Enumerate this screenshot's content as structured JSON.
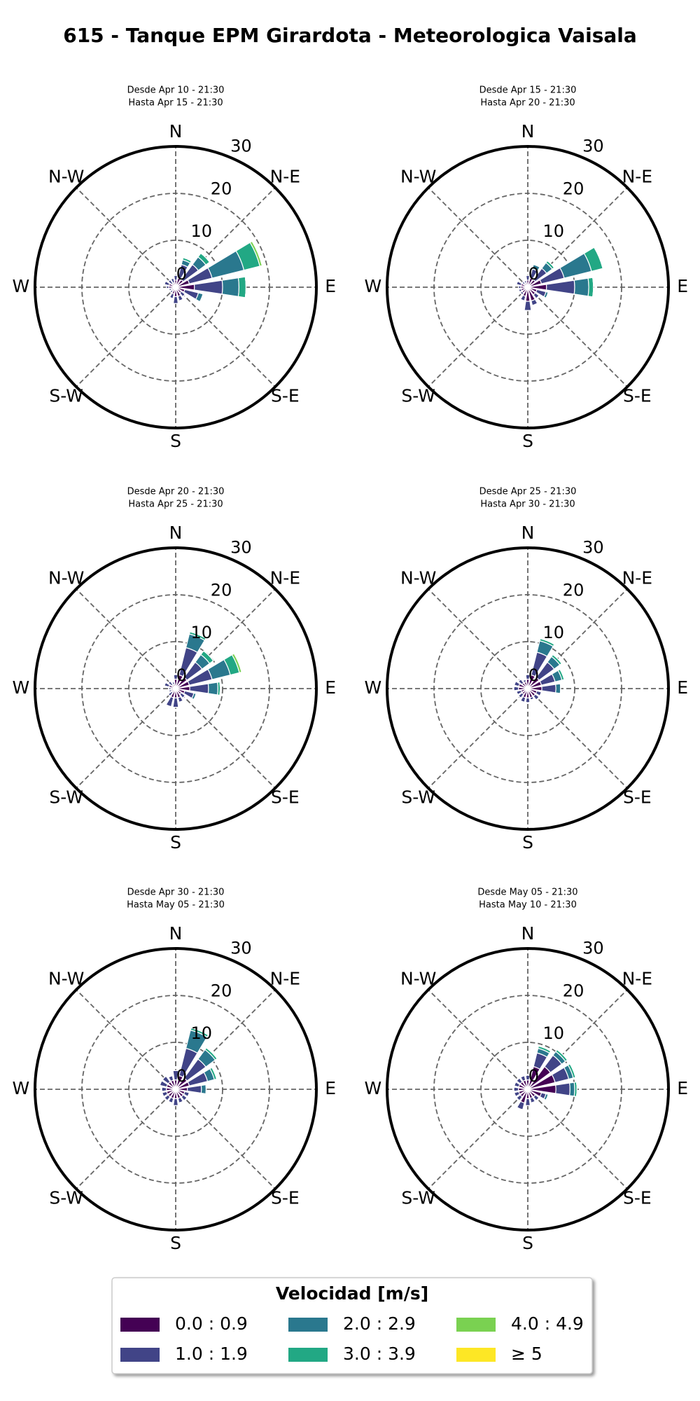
{
  "title": "615 - Tanque EPM Girardota - Meteorologica Vaisala",
  "legend": {
    "title": "Velocidad [m/s]",
    "entries": [
      {
        "name": "0.0 : 0.9",
        "color": "#440154"
      },
      {
        "name": "1.0 : 1.9",
        "color": "#414487"
      },
      {
        "name": "2.0 : 2.9",
        "color": "#2a788e"
      },
      {
        "name": "3.0 : 3.9",
        "color": "#22a884"
      },
      {
        "name": "4.0 : 4.9",
        "color": "#7ad151"
      },
      {
        "name": "≥  5",
        "color": "#fde725"
      }
    ]
  },
  "chart_data": [
    {
      "type": "windrose",
      "subtitle": [
        "Desde Apr 10 - 21:30",
        "Hasta Apr 15 - 21:30"
      ],
      "x": [
        0,
        22.5,
        45,
        67.5,
        90,
        112.5,
        135,
        157.5,
        180,
        202.5,
        225,
        247.5,
        270,
        292.5,
        315,
        337.5
      ],
      "xticks": [
        {
          "value": 0,
          "label": "N"
        },
        {
          "value": 45,
          "label": "N-E"
        },
        {
          "value": 90,
          "label": "E"
        },
        {
          "value": 135,
          "label": "S-E"
        },
        {
          "value": 180,
          "label": "S"
        },
        {
          "value": 225,
          "label": "S-W"
        },
        {
          "value": 270,
          "label": "W"
        },
        {
          "value": 315,
          "label": "N-W"
        }
      ],
      "rlim": [
        0,
        30
      ],
      "rticks": [
        0,
        10,
        20,
        30
      ],
      "series": [
        {
          "values": [
            1.5,
            2,
            2,
            3,
            4,
            2,
            1.5,
            2,
            2,
            1.5,
            1,
            1,
            1.5,
            1.5,
            1,
            1
          ]
        },
        {
          "values": [
            1,
            3,
            4,
            5,
            6,
            3,
            1,
            1,
            1.5,
            1,
            0.5,
            0.5,
            0.5,
            1,
            1,
            1
          ]
        },
        {
          "values": [
            0,
            1,
            2,
            7,
            3.5,
            1,
            0,
            0,
            0,
            0,
            0,
            0,
            0,
            0,
            0,
            0
          ]
        },
        {
          "values": [
            0,
            0.5,
            1,
            3.5,
            1.5,
            0,
            0,
            0,
            0,
            0,
            0,
            0,
            0,
            0,
            0,
            0
          ]
        },
        {
          "values": [
            0,
            0,
            0,
            0.5,
            0,
            0,
            0,
            0,
            0,
            0,
            0,
            0,
            0,
            0,
            0,
            0
          ]
        },
        {
          "values": [
            0,
            0,
            0,
            0,
            0,
            0,
            0,
            0,
            0,
            0,
            0,
            0,
            0,
            0,
            0,
            0
          ]
        }
      ]
    },
    {
      "type": "windrose",
      "subtitle": [
        "Desde Apr 15 - 21:30",
        "Hasta Apr 20 - 21:30"
      ],
      "x": [
        0,
        22.5,
        45,
        67.5,
        90,
        112.5,
        135,
        157.5,
        180,
        202.5,
        225,
        247.5,
        270,
        292.5,
        315,
        337.5
      ],
      "xticks": [
        {
          "value": 0,
          "label": "N"
        },
        {
          "value": 45,
          "label": "N-E"
        },
        {
          "value": 90,
          "label": "E"
        },
        {
          "value": 135,
          "label": "S-E"
        },
        {
          "value": 180,
          "label": "S"
        },
        {
          "value": 225,
          "label": "S-W"
        },
        {
          "value": 270,
          "label": "W"
        },
        {
          "value": 315,
          "label": "N-W"
        }
      ],
      "rlim": [
        0,
        30
      ],
      "rticks": [
        0,
        10,
        20,
        30
      ],
      "series": [
        {
          "values": [
            1.5,
            2,
            2,
            3,
            4,
            2,
            2,
            3,
            3,
            2,
            1.5,
            1.5,
            1.5,
            1.5,
            1,
            1
          ]
        },
        {
          "values": [
            1,
            2,
            3,
            5,
            6,
            2,
            1,
            1,
            2,
            1,
            0.5,
            0.5,
            0.5,
            1,
            0.5,
            0.5
          ]
        },
        {
          "values": [
            0,
            1,
            1.5,
            6,
            3,
            0.5,
            0,
            0,
            0,
            0,
            0,
            0,
            0,
            0,
            0,
            0
          ]
        },
        {
          "values": [
            0,
            0,
            0.5,
            2.5,
            1,
            0,
            0,
            0,
            0,
            0,
            0,
            0,
            0,
            0,
            0,
            0
          ]
        },
        {
          "values": [
            0,
            0,
            0,
            0,
            0,
            0,
            0,
            0,
            0,
            0,
            0,
            0,
            0,
            0,
            0,
            0
          ]
        },
        {
          "values": [
            0,
            0,
            0,
            0,
            0,
            0,
            0,
            0,
            0,
            0,
            0,
            0,
            0,
            0,
            0,
            0
          ]
        }
      ]
    },
    {
      "type": "windrose",
      "subtitle": [
        "Desde Apr 20 - 21:30",
        "Hasta Apr 25 - 21:30"
      ],
      "x": [
        0,
        22.5,
        45,
        67.5,
        90,
        112.5,
        135,
        157.5,
        180,
        202.5,
        225,
        247.5,
        270,
        292.5,
        315,
        337.5
      ],
      "xticks": [
        {
          "value": 0,
          "label": "N"
        },
        {
          "value": 45,
          "label": "N-E"
        },
        {
          "value": 90,
          "label": "E"
        },
        {
          "value": 135,
          "label": "S-E"
        },
        {
          "value": 180,
          "label": "S"
        },
        {
          "value": 225,
          "label": "S-W"
        },
        {
          "value": 270,
          "label": "W"
        },
        {
          "value": 315,
          "label": "N-W"
        }
      ],
      "rlim": [
        0,
        30
      ],
      "rticks": [
        0,
        10,
        20,
        30
      ],
      "series": [
        {
          "values": [
            2,
            3,
            3,
            3,
            3,
            2,
            1.5,
            2,
            2,
            2,
            1,
            1,
            1,
            1.5,
            1,
            1
          ]
        },
        {
          "values": [
            1,
            6,
            4,
            5,
            4,
            2,
            1,
            1,
            2,
            2,
            1,
            0.5,
            0.5,
            1,
            1,
            0.5
          ]
        },
        {
          "values": [
            0,
            3,
            2,
            4,
            2,
            0.5,
            0,
            0,
            0,
            0,
            0,
            0,
            0,
            0,
            0,
            0
          ]
        },
        {
          "values": [
            0,
            0.5,
            1,
            2,
            0.5,
            0,
            0,
            0,
            0,
            0,
            0,
            0,
            0,
            0,
            0,
            0
          ]
        },
        {
          "values": [
            0,
            0,
            0,
            0.5,
            0,
            0,
            0,
            0,
            0,
            0,
            0,
            0,
            0,
            0,
            0,
            0
          ]
        },
        {
          "values": [
            0,
            0,
            0,
            0,
            0,
            0,
            0,
            0,
            0,
            0,
            0,
            0,
            0,
            0,
            0,
            0
          ]
        }
      ]
    },
    {
      "type": "windrose",
      "subtitle": [
        "Desde Apr 25 - 21:30",
        "Hasta Apr 30 - 21:30"
      ],
      "x": [
        0,
        22.5,
        45,
        67.5,
        90,
        112.5,
        135,
        157.5,
        180,
        202.5,
        225,
        247.5,
        270,
        292.5,
        315,
        337.5
      ],
      "xticks": [
        {
          "value": 0,
          "label": "N"
        },
        {
          "value": 45,
          "label": "N-E"
        },
        {
          "value": 90,
          "label": "E"
        },
        {
          "value": 135,
          "label": "S-E"
        },
        {
          "value": 180,
          "label": "S"
        },
        {
          "value": 225,
          "label": "S-W"
        },
        {
          "value": 270,
          "label": "W"
        },
        {
          "value": 315,
          "label": "N-W"
        }
      ],
      "rlim": [
        0,
        30
      ],
      "rticks": [
        0,
        10,
        20,
        30
      ],
      "series": [
        {
          "values": [
            2,
            3,
            3,
            3,
            3,
            2,
            2,
            2,
            2,
            2,
            1.5,
            1.5,
            2,
            2,
            1.5,
            1.5
          ]
        },
        {
          "values": [
            1,
            5,
            4,
            3,
            3,
            1,
            1,
            0.5,
            1,
            1,
            1,
            1,
            1,
            1,
            1,
            0.5
          ]
        },
        {
          "values": [
            0,
            2.5,
            1.5,
            1.5,
            1,
            0,
            0,
            0,
            0,
            0,
            0,
            0,
            0,
            0,
            0,
            0
          ]
        },
        {
          "values": [
            0,
            0.5,
            0.5,
            0.5,
            0,
            0,
            0,
            0,
            0,
            0,
            0,
            0,
            0,
            0,
            0,
            0
          ]
        },
        {
          "values": [
            0,
            0,
            0,
            0,
            0,
            0,
            0,
            0,
            0,
            0,
            0,
            0,
            0,
            0,
            0,
            0
          ]
        },
        {
          "values": [
            0,
            0,
            0,
            0,
            0,
            0,
            0,
            0,
            0,
            0,
            0,
            0,
            0,
            0,
            0,
            0
          ]
        }
      ]
    },
    {
      "type": "windrose",
      "subtitle": [
        "Desde Apr 30 - 21:30",
        "Hasta May 05 - 21:30"
      ],
      "x": [
        0,
        22.5,
        45,
        67.5,
        90,
        112.5,
        135,
        157.5,
        180,
        202.5,
        225,
        247.5,
        270,
        292.5,
        315,
        337.5
      ],
      "xticks": [
        {
          "value": 0,
          "label": "N"
        },
        {
          "value": 45,
          "label": "N-E"
        },
        {
          "value": 90,
          "label": "E"
        },
        {
          "value": 135,
          "label": "S-E"
        },
        {
          "value": 180,
          "label": "S"
        },
        {
          "value": 225,
          "label": "S-W"
        },
        {
          "value": 270,
          "label": "W"
        },
        {
          "value": 315,
          "label": "N-W"
        }
      ],
      "rlim": [
        0,
        30
      ],
      "rticks": [
        0,
        10,
        20,
        30
      ],
      "series": [
        {
          "values": [
            2,
            3,
            3,
            3,
            2.5,
            2,
            2,
            2,
            2,
            2,
            2,
            2,
            2,
            2,
            2,
            2
          ]
        },
        {
          "values": [
            2,
            6,
            5,
            4,
            3,
            1,
            1,
            1,
            1.5,
            1,
            1,
            1,
            1,
            1.5,
            1.5,
            1
          ]
        },
        {
          "values": [
            0,
            4,
            2.5,
            1.5,
            1,
            0,
            0,
            0,
            0,
            0,
            0,
            0,
            0,
            0,
            0,
            0
          ]
        },
        {
          "values": [
            0,
            0.5,
            0.5,
            0.5,
            0,
            0,
            0,
            0,
            0,
            0,
            0,
            0,
            0,
            0,
            0,
            0
          ]
        },
        {
          "values": [
            0,
            0,
            0,
            0,
            0,
            0,
            0,
            0,
            0,
            0,
            0,
            0,
            0,
            0,
            0,
            0
          ]
        },
        {
          "values": [
            0,
            0,
            0,
            0,
            0,
            0,
            0,
            0,
            0,
            0,
            0,
            0,
            0,
            0,
            0,
            0
          ]
        }
      ]
    },
    {
      "type": "windrose",
      "subtitle": [
        "Desde May 05 - 21:30",
        "Hasta May 10 - 21:30"
      ],
      "x": [
        0,
        22.5,
        45,
        67.5,
        90,
        112.5,
        135,
        157.5,
        180,
        202.5,
        225,
        247.5,
        270,
        292.5,
        315,
        337.5
      ],
      "xticks": [
        {
          "value": 0,
          "label": "N"
        },
        {
          "value": 45,
          "label": "N-E"
        },
        {
          "value": 90,
          "label": "E"
        },
        {
          "value": 135,
          "label": "S-E"
        },
        {
          "value": 180,
          "label": "S"
        },
        {
          "value": 225,
          "label": "S-W"
        },
        {
          "value": 270,
          "label": "W"
        },
        {
          "value": 315,
          "label": "N-W"
        }
      ],
      "rlim": [
        0,
        30
      ],
      "rticks": [
        0,
        10,
        20,
        30
      ],
      "series": [
        {
          "values": [
            2,
            5,
            6,
            6,
            6,
            3,
            2,
            2,
            2,
            3,
            2,
            2,
            2,
            2,
            2,
            2
          ]
        },
        {
          "values": [
            1,
            3,
            3,
            3,
            3,
            1,
            1,
            1,
            1.5,
            1.5,
            1,
            1,
            1,
            1,
            1,
            1
          ]
        },
        {
          "values": [
            0,
            1,
            1,
            1,
            1,
            0.5,
            0,
            0,
            0,
            0,
            0,
            0,
            0,
            0,
            0,
            0
          ]
        },
        {
          "values": [
            0,
            0.5,
            0.5,
            0.5,
            0.5,
            0,
            0,
            0,
            0,
            0,
            0,
            0,
            0,
            0,
            0,
            0
          ]
        },
        {
          "values": [
            0,
            0,
            0,
            0,
            0,
            0,
            0,
            0,
            0,
            0,
            0,
            0,
            0,
            0,
            0,
            0
          ]
        },
        {
          "values": [
            0,
            0,
            0,
            0,
            0,
            0,
            0,
            0,
            0,
            0,
            0,
            0,
            0,
            0,
            0,
            0
          ]
        }
      ]
    }
  ]
}
